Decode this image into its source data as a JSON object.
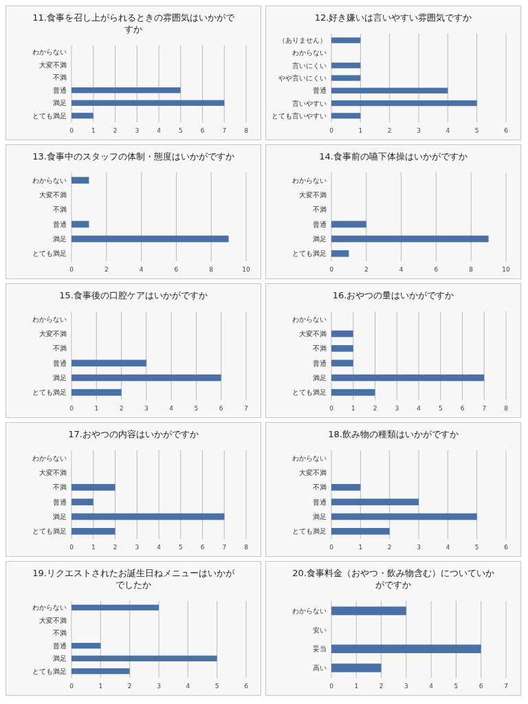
{
  "chart_data": [
    {
      "type": "bar",
      "orientation": "horizontal",
      "title": "11.食事を召し上がられるときの雰囲気はいかがですか",
      "categories": [
        "わからない",
        "大変不満",
        "不満",
        "普通",
        "満足",
        "とても満足"
      ],
      "values": [
        0,
        0,
        0,
        5,
        7,
        1
      ],
      "color": "#4a70aa",
      "xlim": [
        0,
        8
      ],
      "xticks": [
        0,
        1,
        2,
        3,
        4,
        5,
        6,
        7,
        8
      ],
      "grid": "x"
    },
    {
      "type": "bar",
      "orientation": "horizontal",
      "title": "12.好き嫌いは言いやすい雰囲気ですか",
      "categories": [
        "（ありません）",
        "わからない",
        "言いにくい",
        "やや言いにくい",
        "普通",
        "言いやすい",
        "とても言いやすい"
      ],
      "values": [
        1,
        0,
        1,
        1,
        4,
        5,
        1
      ],
      "color": "#4a70aa",
      "xlim": [
        0,
        6
      ],
      "xticks": [
        0,
        1,
        2,
        3,
        4,
        5,
        6
      ],
      "grid": "x"
    },
    {
      "type": "bar",
      "orientation": "horizontal",
      "title": "13.食事中のスタッフの体制・態度はいかがですか",
      "categories": [
        "わからない",
        "大変不満",
        "不満",
        "普通",
        "満足",
        "とても満足"
      ],
      "values": [
        1,
        0,
        0,
        1,
        9,
        0
      ],
      "color": "#4a70aa",
      "xlim": [
        0,
        10
      ],
      "xticks": [
        0,
        2,
        4,
        6,
        8,
        10
      ],
      "grid": "x"
    },
    {
      "type": "bar",
      "orientation": "horizontal",
      "title": "14.食事前の嚥下体操はいかがですか",
      "categories": [
        "わからない",
        "大変不満",
        "不満",
        "普通",
        "満足",
        "とても満足"
      ],
      "values": [
        0,
        0,
        0,
        2,
        9,
        1
      ],
      "color": "#4a70aa",
      "xlim": [
        0,
        10
      ],
      "xticks": [
        0,
        2,
        4,
        6,
        8,
        10
      ],
      "grid": "x"
    },
    {
      "type": "bar",
      "orientation": "horizontal",
      "title": "15.食事後の口腔ケアはいかがですか",
      "categories": [
        "わからない",
        "大変不満",
        "不満",
        "普通",
        "満足",
        "とても満足"
      ],
      "values": [
        0,
        0,
        0,
        3,
        6,
        2
      ],
      "color": "#4a70aa",
      "xlim": [
        0,
        7
      ],
      "xticks": [
        0,
        1,
        2,
        3,
        4,
        5,
        6,
        7
      ],
      "grid": "x"
    },
    {
      "type": "bar",
      "orientation": "horizontal",
      "title": "16.おやつの量はいかがですか",
      "categories": [
        "わからない",
        "大変不満",
        "不満",
        "普通",
        "満足",
        "とても満足"
      ],
      "values": [
        0,
        1,
        1,
        1,
        7,
        2
      ],
      "color": "#4a70aa",
      "xlim": [
        0,
        8
      ],
      "xticks": [
        0,
        1,
        2,
        3,
        4,
        5,
        6,
        7,
        8
      ],
      "grid": "x"
    },
    {
      "type": "bar",
      "orientation": "horizontal",
      "title": "17.おやつの内容はいかがですか",
      "categories": [
        "わからない",
        "大変不満",
        "不満",
        "普通",
        "満足",
        "とても満足"
      ],
      "values": [
        0,
        0,
        2,
        1,
        7,
        2
      ],
      "color": "#4a70aa",
      "xlim": [
        0,
        8
      ],
      "xticks": [
        0,
        1,
        2,
        3,
        4,
        5,
        6,
        7,
        8
      ],
      "grid": "x"
    },
    {
      "type": "bar",
      "orientation": "horizontal",
      "title": "18.飲み物の種類はいかがですか",
      "categories": [
        "わからない",
        "大変不満",
        "不満",
        "普通",
        "満足",
        "とても満足"
      ],
      "values": [
        0,
        0,
        1,
        3,
        5,
        2
      ],
      "color": "#4a70aa",
      "xlim": [
        0,
        6
      ],
      "xticks": [
        0,
        1,
        2,
        3,
        4,
        5,
        6
      ],
      "grid": "x"
    },
    {
      "type": "bar",
      "orientation": "horizontal",
      "title": "19.リクエストされたお誕生日ねメニューはいかがでしたか",
      "categories": [
        "わからない",
        "大変不満",
        "不満",
        "普通",
        "満足",
        "とても満足"
      ],
      "values": [
        3,
        0,
        0,
        1,
        5,
        2
      ],
      "color": "#4a70aa",
      "xlim": [
        0,
        6
      ],
      "xticks": [
        0,
        1,
        2,
        3,
        4,
        5,
        6
      ],
      "grid": "x"
    },
    {
      "type": "bar",
      "orientation": "horizontal",
      "title": "20.食事料金（おやつ・飲み物含む）についていかがですか",
      "categories": [
        "わからない",
        "安い",
        "妥当",
        "高い"
      ],
      "values": [
        3,
        0,
        6,
        2
      ],
      "color": "#4a70aa",
      "xlim": [
        0,
        7
      ],
      "xticks": [
        0,
        1,
        2,
        3,
        4,
        5,
        6,
        7
      ],
      "grid": "x"
    }
  ]
}
